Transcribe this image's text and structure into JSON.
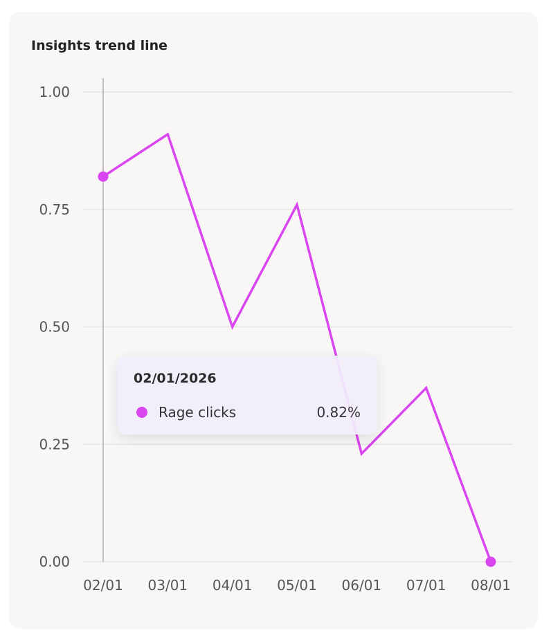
{
  "card": {
    "title": "Insights trend line"
  },
  "colors": {
    "series": "#d946ef",
    "grid": "#e6e4e2",
    "crosshair": "#c4c2c0",
    "text": "#555555"
  },
  "tooltip": {
    "date": "02/01/2026",
    "series_label": "Rage clicks",
    "value_text": "0.82%"
  },
  "chart_data": {
    "type": "line",
    "title": "Insights trend line",
    "xlabel": "",
    "ylabel": "",
    "categories": [
      "02/01",
      "03/01",
      "04/01",
      "05/01",
      "06/01",
      "07/01",
      "08/01"
    ],
    "series": [
      {
        "name": "Rage clicks",
        "values": [
          0.82,
          0.91,
          0.5,
          0.76,
          0.23,
          0.37,
          0.0
        ]
      }
    ],
    "yticks": [
      "0.00",
      "0.25",
      "0.50",
      "0.75",
      "1.00"
    ],
    "ylim": [
      0,
      1
    ],
    "grid": true,
    "highlighted_index": 0
  }
}
